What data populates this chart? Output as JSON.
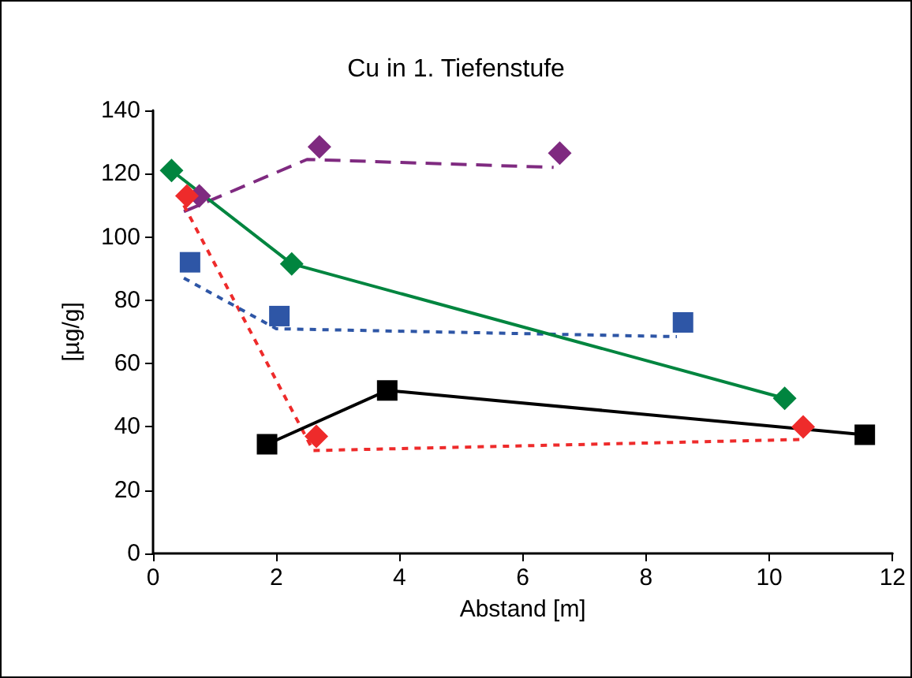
{
  "chart_data": {
    "type": "line",
    "title": "Cu in 1. Tiefenstufe",
    "xlabel": "Abstand [m]",
    "ylabel": "[µg/g]",
    "xlim": [
      0,
      12
    ],
    "xticks": [
      0,
      2,
      4,
      6,
      8,
      10,
      12
    ],
    "ylim": [
      0,
      140
    ],
    "yticks": [
      0,
      20,
      40,
      60,
      80,
      100,
      120,
      140
    ],
    "grid": false,
    "series": [
      {
        "color": "#00853f",
        "marker": "diamond",
        "line_style": "solid",
        "x": [
          0.3,
          2.25,
          10.25
        ],
        "values": [
          121,
          91.5,
          49
        ]
      },
      {
        "type": "scatter",
        "color": "#7f2a80",
        "marker": "diamond",
        "x": [
          0.75,
          2.7,
          6.6
        ],
        "values": [
          113,
          128.5,
          126.5
        ]
      },
      {
        "type": "line",
        "color": "#7f2a80",
        "marker": "none",
        "line_style": "dashed",
        "x": [
          0.5,
          2.5,
          6.5
        ],
        "values": [
          108,
          124.5,
          122
        ]
      },
      {
        "type": "scatter",
        "color": "#ee2b2b",
        "marker": "diamond",
        "x": [
          0.55,
          2.65,
          10.55
        ],
        "values": [
          113,
          37,
          40
        ]
      },
      {
        "type": "line",
        "color": "#ee2b2b",
        "marker": "none",
        "line_style": "dotted",
        "x": [
          0.5,
          2.6,
          10.5
        ],
        "values": [
          110,
          32.5,
          36
        ]
      },
      {
        "type": "scatter",
        "color": "#2e56a6",
        "marker": "square",
        "x": [
          0.6,
          2.05,
          8.6
        ],
        "values": [
          92,
          75,
          73
        ]
      },
      {
        "type": "line",
        "color": "#2e56a6",
        "marker": "none",
        "line_style": "dotted",
        "x": [
          0.5,
          2.0,
          8.5
        ],
        "values": [
          87,
          71,
          68.5
        ]
      },
      {
        "color": "#000000",
        "marker": "square",
        "line_style": "solid",
        "x": [
          1.85,
          3.8,
          11.55
        ],
        "values": [
          34.5,
          51.5,
          37.5
        ]
      }
    ]
  }
}
